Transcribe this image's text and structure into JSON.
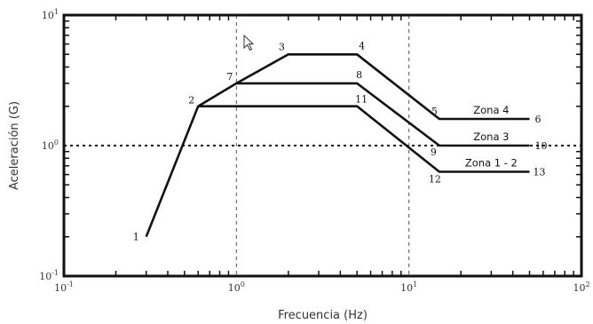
{
  "chart_data": {
    "type": "line",
    "title": "",
    "xlabel": "Frecuencia (Hz)",
    "ylabel": "Aceleración (G)",
    "x_scale": "log",
    "y_scale": "log",
    "xlim": [
      0.1,
      100
    ],
    "ylim": [
      0.1,
      10
    ],
    "x_ticks": [
      {
        "base": "10",
        "exp": "-1",
        "value": 0.1
      },
      {
        "base": "10",
        "exp": "0",
        "value": 1
      },
      {
        "base": "10",
        "exp": "1",
        "value": 10
      },
      {
        "base": "10",
        "exp": "2",
        "value": 100
      }
    ],
    "y_ticks": [
      {
        "base": "10",
        "exp": "-1",
        "value": 0.1
      },
      {
        "base": "10",
        "exp": "0",
        "value": 1
      },
      {
        "base": "10",
        "exp": "1",
        "value": 10
      }
    ],
    "grid": "dashed at x=1, x=10, y=1",
    "series": [
      {
        "name": "Zona 4",
        "points": [
          {
            "label": "1",
            "x": 0.3,
            "y": 0.2
          },
          {
            "label": "2",
            "x": 0.6,
            "y": 2.0
          },
          {
            "label": "7",
            "x": 1.0,
            "y": 3.0
          },
          {
            "label": "3",
            "x": 2.0,
            "y": 5.0
          },
          {
            "label": "4",
            "x": 5.0,
            "y": 5.0
          },
          {
            "label": "5",
            "x": 15.0,
            "y": 1.6
          },
          {
            "label": "6",
            "x": 50.0,
            "y": 1.6
          }
        ]
      },
      {
        "name": "Zona 3",
        "points": [
          {
            "label": "7",
            "x": 1.0,
            "y": 3.0
          },
          {
            "label": "8",
            "x": 5.0,
            "y": 3.0
          },
          {
            "label": "9",
            "x": 15.0,
            "y": 1.0
          },
          {
            "label": "10",
            "x": 50.0,
            "y": 1.0
          }
        ]
      },
      {
        "name": "Zona 1 - 2",
        "points": [
          {
            "label": "2",
            "x": 0.6,
            "y": 2.0
          },
          {
            "label": "11",
            "x": 5.0,
            "y": 2.0
          },
          {
            "label": "12",
            "x": 15.0,
            "y": 0.63
          },
          {
            "label": "13",
            "x": 50.0,
            "y": 0.63
          }
        ]
      }
    ]
  }
}
